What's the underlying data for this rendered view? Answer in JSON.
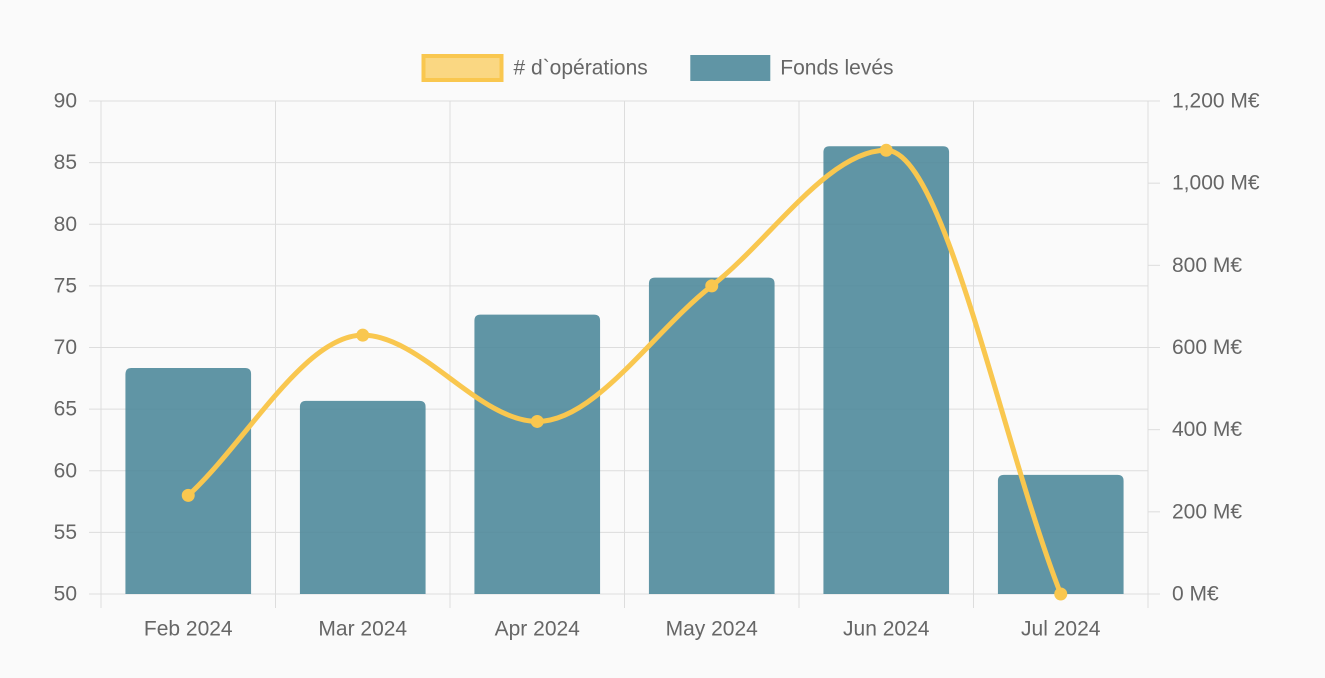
{
  "chart_data": {
    "type": "bar",
    "categories": [
      "Feb 2024",
      "Mar 2024",
      "Apr 2024",
      "May 2024",
      "Jun 2024",
      "Jul 2024"
    ],
    "series": [
      {
        "name": "# d`opérations",
        "type": "line",
        "axis": "left",
        "smooth": true,
        "color": "#f9c74f",
        "values": [
          58,
          71,
          64,
          75,
          86,
          50
        ]
      },
      {
        "name": "Fonds levés",
        "type": "bar",
        "axis": "right",
        "color": "#4f8a9b",
        "values": [
          550,
          470,
          680,
          770,
          1090,
          290
        ]
      }
    ],
    "y_left": {
      "min": 50,
      "max": 90,
      "ticks": [
        "50",
        "55",
        "60",
        "65",
        "70",
        "75",
        "80",
        "85",
        "90"
      ]
    },
    "y_right": {
      "min": 0,
      "max": 1200,
      "unit": "M€",
      "ticks": [
        "0 M€",
        "200 M€",
        "400 M€",
        "600 M€",
        "800 M€",
        "1,000 M€",
        "1,200 M€"
      ]
    },
    "grid": true,
    "legend": "top-center"
  }
}
